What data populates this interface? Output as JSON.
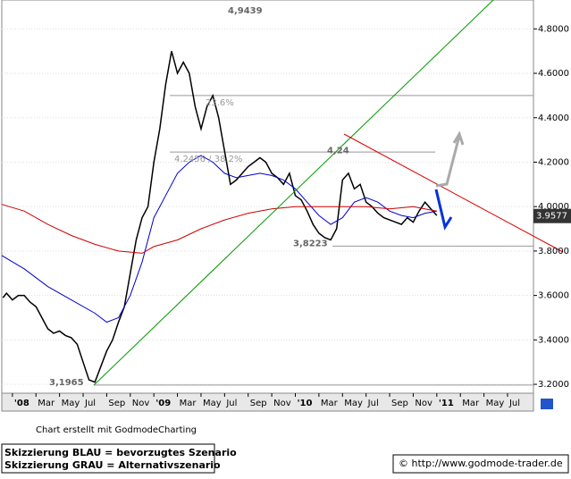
{
  "chart_data": {
    "type": "line",
    "xlim": [
      -0.9,
      44.2
    ],
    "xticks": [
      {
        "value": 0,
        "label": "'08"
      },
      {
        "value": 2,
        "label": "Mar"
      },
      {
        "value": 4,
        "label": "May"
      },
      {
        "value": 6,
        "label": "Jul"
      },
      {
        "value": 8,
        "label": "Sep"
      },
      {
        "value": 10,
        "label": "Nov"
      },
      {
        "value": 12,
        "label": "'09"
      },
      {
        "value": 14,
        "label": "Mar"
      },
      {
        "value": 16,
        "label": "May"
      },
      {
        "value": 18,
        "label": "Jul"
      },
      {
        "value": 20,
        "label": "Sep"
      },
      {
        "value": 22,
        "label": "Nov"
      },
      {
        "value": 24,
        "label": "'10"
      },
      {
        "value": 26,
        "label": "Mar"
      },
      {
        "value": 28,
        "label": "May"
      },
      {
        "value": 30,
        "label": "Jul"
      },
      {
        "value": 32,
        "label": "Sep"
      },
      {
        "value": 34,
        "label": "Nov"
      },
      {
        "value": 36,
        "label": "'11"
      },
      {
        "value": 38,
        "label": "Mar"
      },
      {
        "value": 40,
        "label": "May"
      },
      {
        "value": 42,
        "label": "Jul"
      }
    ],
    "ylim": [
      3.16,
      4.93
    ],
    "yticks": [
      {
        "value": 3.2,
        "label": "3.2000"
      },
      {
        "value": 3.4,
        "label": "3.4000"
      },
      {
        "value": 3.6,
        "label": "3.6000"
      },
      {
        "value": 3.8,
        "label": "3.8000"
      },
      {
        "value": 4.0,
        "label": "4.0000"
      },
      {
        "value": 4.2,
        "label": "4.2000"
      },
      {
        "value": 4.4,
        "label": "4.4000"
      },
      {
        "value": 4.6,
        "label": "4.6000"
      },
      {
        "value": 4.8,
        "label": "4.8000"
      }
    ],
    "grid": true,
    "series": [
      {
        "color": "#000000",
        "x": [
          -0.8,
          -0.5,
          0,
          0.5,
          1,
          1.5,
          2,
          2.5,
          3,
          3.5,
          4,
          4.5,
          5,
          5.5,
          6,
          6.5,
          7,
          7.5,
          8,
          8.5,
          9,
          9.5,
          10,
          10.5,
          11,
          11.5,
          12,
          12.5,
          13,
          13.5,
          14,
          14.5,
          15,
          15.5,
          16,
          16.5,
          17,
          17.5,
          18,
          18.5,
          19,
          19.5,
          20,
          20.5,
          21,
          21.5,
          22,
          22.5,
          23,
          23.5,
          24,
          24.5,
          25,
          25.5,
          26,
          26.5,
          27,
          27.5,
          28,
          28.5,
          29,
          29.5,
          30,
          30.5,
          31,
          31.5,
          32,
          32.5,
          33,
          33.5,
          34,
          34.5,
          35,
          35.5,
          36
        ],
        "values": [
          3.59,
          3.61,
          3.58,
          3.6,
          3.6,
          3.57,
          3.55,
          3.5,
          3.45,
          3.43,
          3.44,
          3.42,
          3.41,
          3.38,
          3.3,
          3.22,
          3.21,
          3.28,
          3.35,
          3.4,
          3.48,
          3.55,
          3.7,
          3.85,
          3.95,
          4.0,
          4.2,
          4.35,
          4.55,
          4.7,
          4.6,
          4.65,
          4.6,
          4.45,
          4.35,
          4.45,
          4.5,
          4.4,
          4.25,
          4.1,
          4.12,
          4.15,
          4.18,
          4.2,
          4.22,
          4.2,
          4.15,
          4.13,
          4.1,
          4.15,
          4.05,
          4.03,
          3.98,
          3.92,
          3.88,
          3.86,
          3.85,
          3.9,
          4.12,
          4.15,
          4.08,
          4.1,
          4.02,
          4.0,
          3.97,
          3.95,
          3.94,
          3.93,
          3.92,
          3.95,
          3.93,
          3.98,
          4.02,
          3.99,
          3.96
        ]
      },
      {
        "color": "#0000cc",
        "x": [
          -0.9,
          1,
          3,
          5,
          7,
          8,
          9,
          10,
          11,
          12,
          13,
          14,
          15,
          16,
          17,
          18,
          19,
          20,
          21,
          22,
          23,
          24,
          25,
          26,
          27,
          28,
          29,
          30,
          31,
          32,
          33,
          34,
          35,
          36
        ],
        "values": [
          3.78,
          3.72,
          3.64,
          3.58,
          3.52,
          3.48,
          3.5,
          3.6,
          3.75,
          3.95,
          4.05,
          4.15,
          4.2,
          4.23,
          4.2,
          4.15,
          4.13,
          4.14,
          4.15,
          4.14,
          4.12,
          4.08,
          4.02,
          3.96,
          3.92,
          3.95,
          4.02,
          4.04,
          4.02,
          3.98,
          3.96,
          3.95,
          3.97,
          3.98
        ]
      },
      {
        "color": "#cc0000",
        "x": [
          -0.9,
          1,
          3,
          5,
          7,
          9,
          11,
          12,
          14,
          16,
          18,
          20,
          22,
          24,
          26,
          28,
          30,
          32,
          34,
          36
        ],
        "values": [
          4.01,
          3.98,
          3.92,
          3.87,
          3.83,
          3.8,
          3.79,
          3.82,
          3.85,
          3.9,
          3.94,
          3.97,
          3.99,
          4.0,
          4.0,
          4.0,
          4.0,
          3.99,
          4.0,
          3.98
        ]
      }
    ],
    "annotations": [
      {
        "value": 4.9439,
        "label": "4,9439"
      },
      {
        "value": 4.24,
        "label": "4,24"
      },
      {
        "value": 3.8223,
        "label": "3,8223"
      },
      {
        "value": 3.1965,
        "label": "3,1965"
      }
    ],
    "fib_levels": [
      {
        "value": 4.5,
        "label": "23.6%"
      },
      {
        "value": 4.2456,
        "label": "4.2456 / 38.2%"
      }
    ],
    "last_price": 3.9577,
    "credit": "Chart erstellt mit GodmodeCharting",
    "legend_notes": [
      "Skizzierung BLAU = bevorzugtes Szenario",
      "Skizzierung GRAU = Alternativszenario"
    ],
    "source": "© http://www.godmode-trader.de"
  }
}
